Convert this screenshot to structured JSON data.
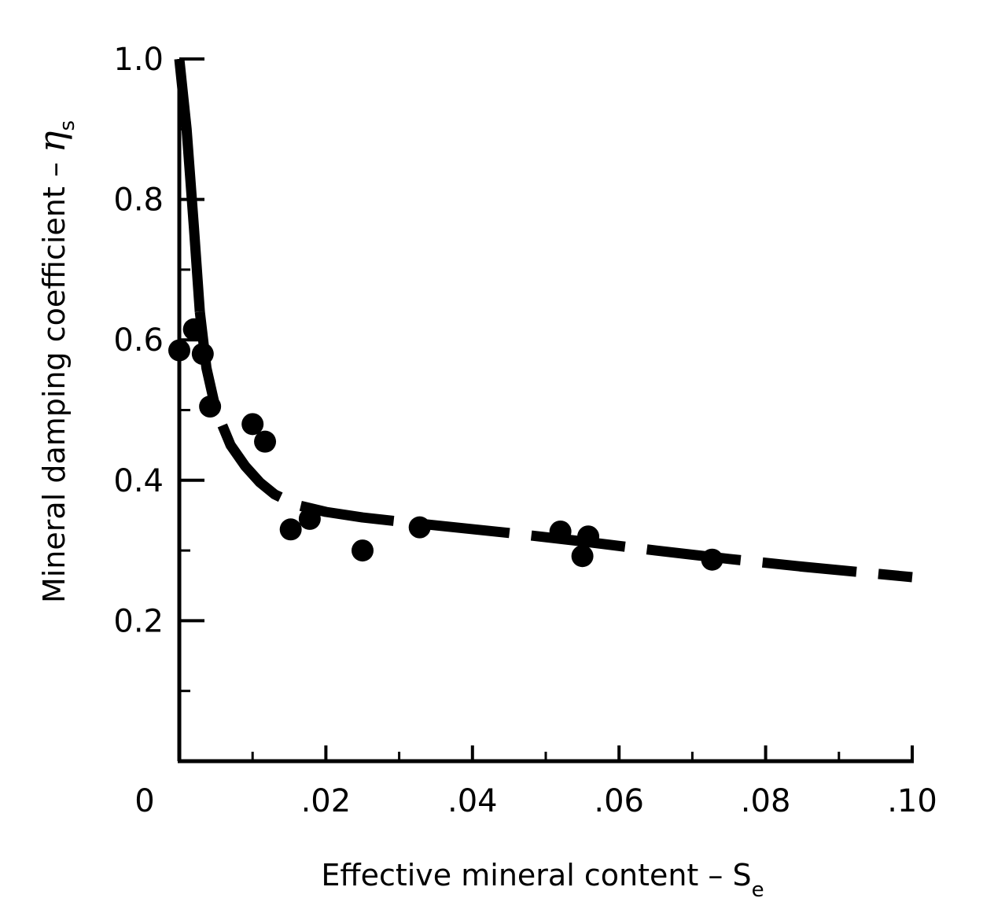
{
  "chart_data": {
    "type": "scatter",
    "title": "",
    "xlabel": {
      "text": "Effective mineral content – S",
      "subscript": "e"
    },
    "ylabel": {
      "text": "Mineral damping coefficient – ",
      "symbol": "η",
      "subscript": "s"
    },
    "xlim": [
      0,
      0.1
    ],
    "ylim": [
      0,
      1.0
    ],
    "x_ticks": [
      {
        "value": 0,
        "label": "0"
      },
      {
        "value": 0.02,
        "label": ".02"
      },
      {
        "value": 0.04,
        "label": ".04"
      },
      {
        "value": 0.06,
        "label": ".06"
      },
      {
        "value": 0.08,
        "label": ".08"
      },
      {
        "value": 0.1,
        "label": ".10"
      }
    ],
    "x_minor_ticks": [
      0.01,
      0.03,
      0.05,
      0.07,
      0.09
    ],
    "y_ticks": [
      {
        "value": 0.2,
        "label": "0.2"
      },
      {
        "value": 0.4,
        "label": "0.4"
      },
      {
        "value": 0.6,
        "label": "0.6"
      },
      {
        "value": 0.8,
        "label": "0.8"
      },
      {
        "value": 1.0,
        "label": "1.0"
      }
    ],
    "y_minor_ticks": [
      0.1,
      0.3,
      0.5,
      0.7,
      0.9
    ],
    "grid": false,
    "legend": "none",
    "points": [
      {
        "x": 0.0,
        "y": 0.585
      },
      {
        "x": 0.002,
        "y": 0.615
      },
      {
        "x": 0.0032,
        "y": 0.58
      },
      {
        "x": 0.0042,
        "y": 0.505
      },
      {
        "x": 0.01,
        "y": 0.48
      },
      {
        "x": 0.0117,
        "y": 0.455
      },
      {
        "x": 0.0152,
        "y": 0.33
      },
      {
        "x": 0.0178,
        "y": 0.345
      },
      {
        "x": 0.025,
        "y": 0.3
      },
      {
        "x": 0.0328,
        "y": 0.333
      },
      {
        "x": 0.052,
        "y": 0.327
      },
      {
        "x": 0.055,
        "y": 0.292
      },
      {
        "x": 0.0558,
        "y": 0.32
      },
      {
        "x": 0.0727,
        "y": 0.287
      }
    ],
    "curve": {
      "style": "solid-then-dashed",
      "points": [
        {
          "x": 0.0,
          "y": 1.0
        },
        {
          "x": 0.001,
          "y": 0.9
        },
        {
          "x": 0.002,
          "y": 0.76
        },
        {
          "x": 0.0028,
          "y": 0.64
        },
        {
          "x": 0.0037,
          "y": 0.56
        },
        {
          "x": 0.005,
          "y": 0.5
        },
        {
          "x": 0.007,
          "y": 0.45
        },
        {
          "x": 0.009,
          "y": 0.42
        },
        {
          "x": 0.011,
          "y": 0.397
        },
        {
          "x": 0.013,
          "y": 0.38
        },
        {
          "x": 0.016,
          "y": 0.365
        },
        {
          "x": 0.02,
          "y": 0.355
        },
        {
          "x": 0.025,
          "y": 0.347
        },
        {
          "x": 0.033,
          "y": 0.338
        },
        {
          "x": 0.045,
          "y": 0.325
        },
        {
          "x": 0.055,
          "y": 0.313
        },
        {
          "x": 0.065,
          "y": 0.3
        },
        {
          "x": 0.075,
          "y": 0.288
        },
        {
          "x": 0.085,
          "y": 0.277
        },
        {
          "x": 0.1,
          "y": 0.262
        }
      ]
    }
  }
}
